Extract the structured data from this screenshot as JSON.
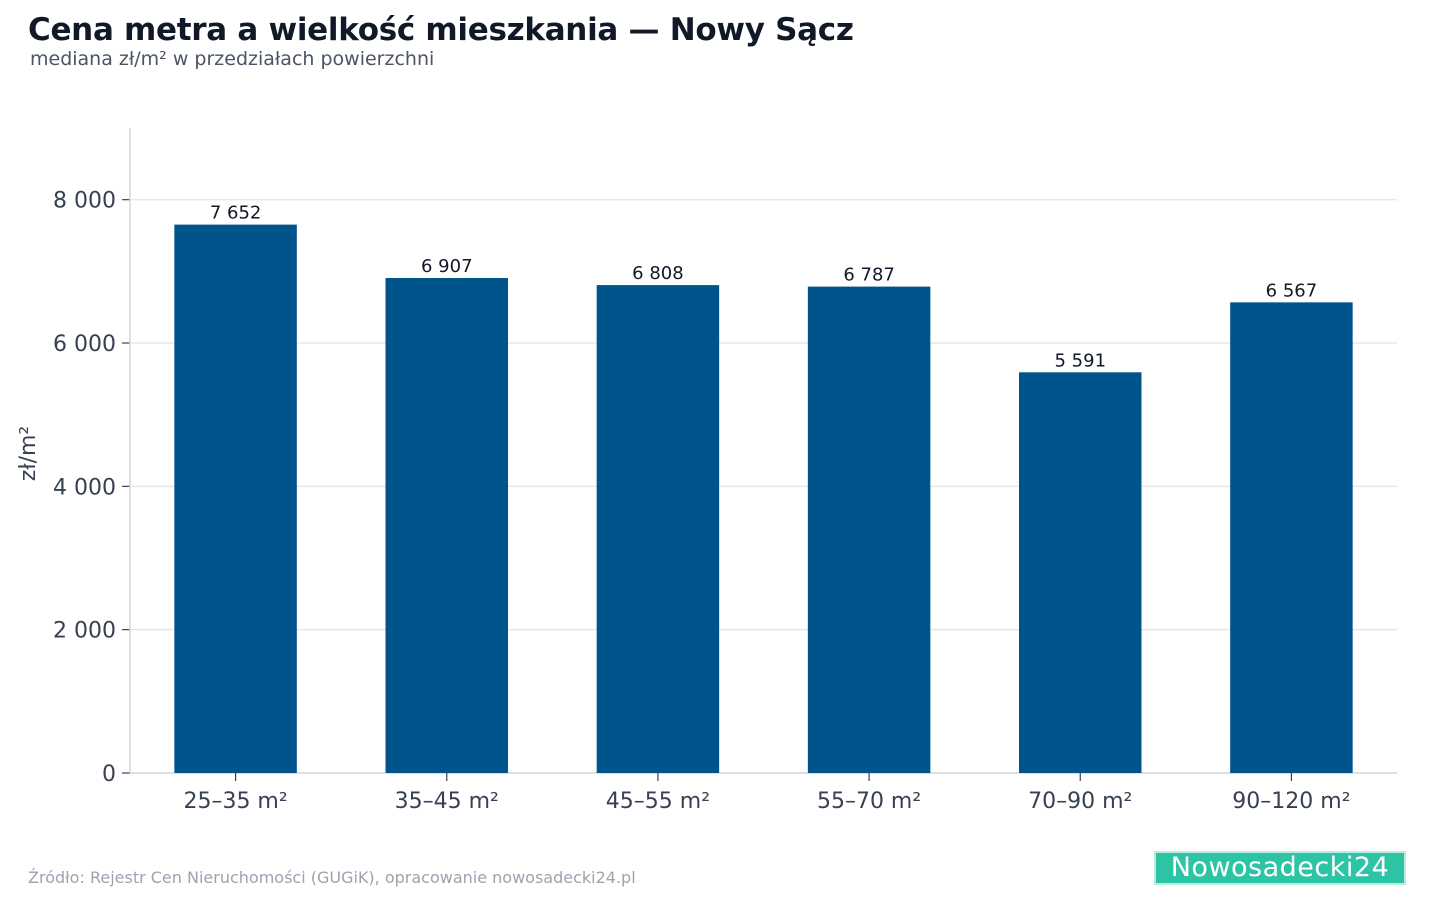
{
  "header": {
    "title": "Cena metra a wielkość mieszkania — Nowy Sącz",
    "subtitle": "mediana zł/m² w przedziałach powierzchni"
  },
  "footer": {
    "source": "Źródło: Rejestr Cen Nieruchomości (GUGiK), opracowanie nowosadecki24.pl",
    "logo": "Nowosadecki24"
  },
  "colors": {
    "bar": "#00548c",
    "grid": "#e5e7eb",
    "axis": "#d1d5db",
    "tick_text": "#374151",
    "label_text": "#111827",
    "logo_bg": "#2cc4a4"
  },
  "chart_data": {
    "type": "bar",
    "title": "Cena metra a wielkość mieszkania — Nowy Sącz",
    "subtitle": "mediana zł/m² w przedziałach powierzchni",
    "xlabel": "",
    "ylabel": "zł/m²",
    "categories": [
      "25–35 m²",
      "35–45 m²",
      "45–55 m²",
      "55–70 m²",
      "70–90 m²",
      "90–120 m²"
    ],
    "values": [
      7652,
      6907,
      6808,
      6787,
      5591,
      6567
    ],
    "value_labels": [
      "7 652",
      "6 907",
      "6 808",
      "6 787",
      "5 591",
      "6 567"
    ],
    "ylim": [
      0,
      9000
    ],
    "yticks": [
      0,
      2000,
      4000,
      6000,
      8000
    ],
    "ytick_labels": [
      "0",
      "2 000",
      "4 000",
      "6 000",
      "8 000"
    ],
    "grid": true,
    "legend": "none"
  }
}
